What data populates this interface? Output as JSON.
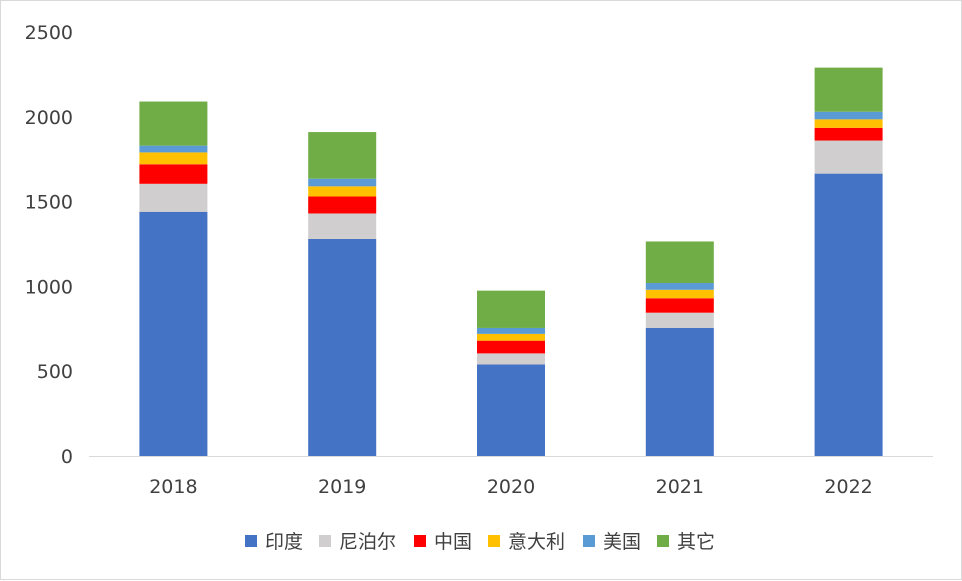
{
  "chart_data": {
    "type": "bar",
    "stacked": true,
    "categories": [
      "2018",
      "2019",
      "2020",
      "2021",
      "2022"
    ],
    "series": [
      {
        "name": "印度",
        "color": "#4472C4",
        "values": [
          1440,
          1280,
          540,
          755,
          1665
        ]
      },
      {
        "name": "尼泊尔",
        "color": "#D0CECE",
        "values": [
          165,
          150,
          65,
          90,
          195
        ]
      },
      {
        "name": "中国",
        "color": "#FF0000",
        "values": [
          115,
          100,
          75,
          85,
          75
        ]
      },
      {
        "name": "意大利",
        "color": "#FFC000",
        "values": [
          70,
          60,
          40,
          50,
          50
        ]
      },
      {
        "name": "美国",
        "color": "#5B9BD5",
        "values": [
          40,
          45,
          35,
          40,
          45
        ]
      },
      {
        "name": "其它",
        "color": "#70AD47",
        "values": [
          260,
          275,
          220,
          245,
          260
        ]
      }
    ],
    "title": "",
    "xlabel": "",
    "ylabel": "",
    "ylim": [
      0,
      2500
    ],
    "yticks": [
      0,
      500,
      1000,
      1500,
      2000,
      2500
    ],
    "grid": false,
    "legend": "bottom"
  }
}
